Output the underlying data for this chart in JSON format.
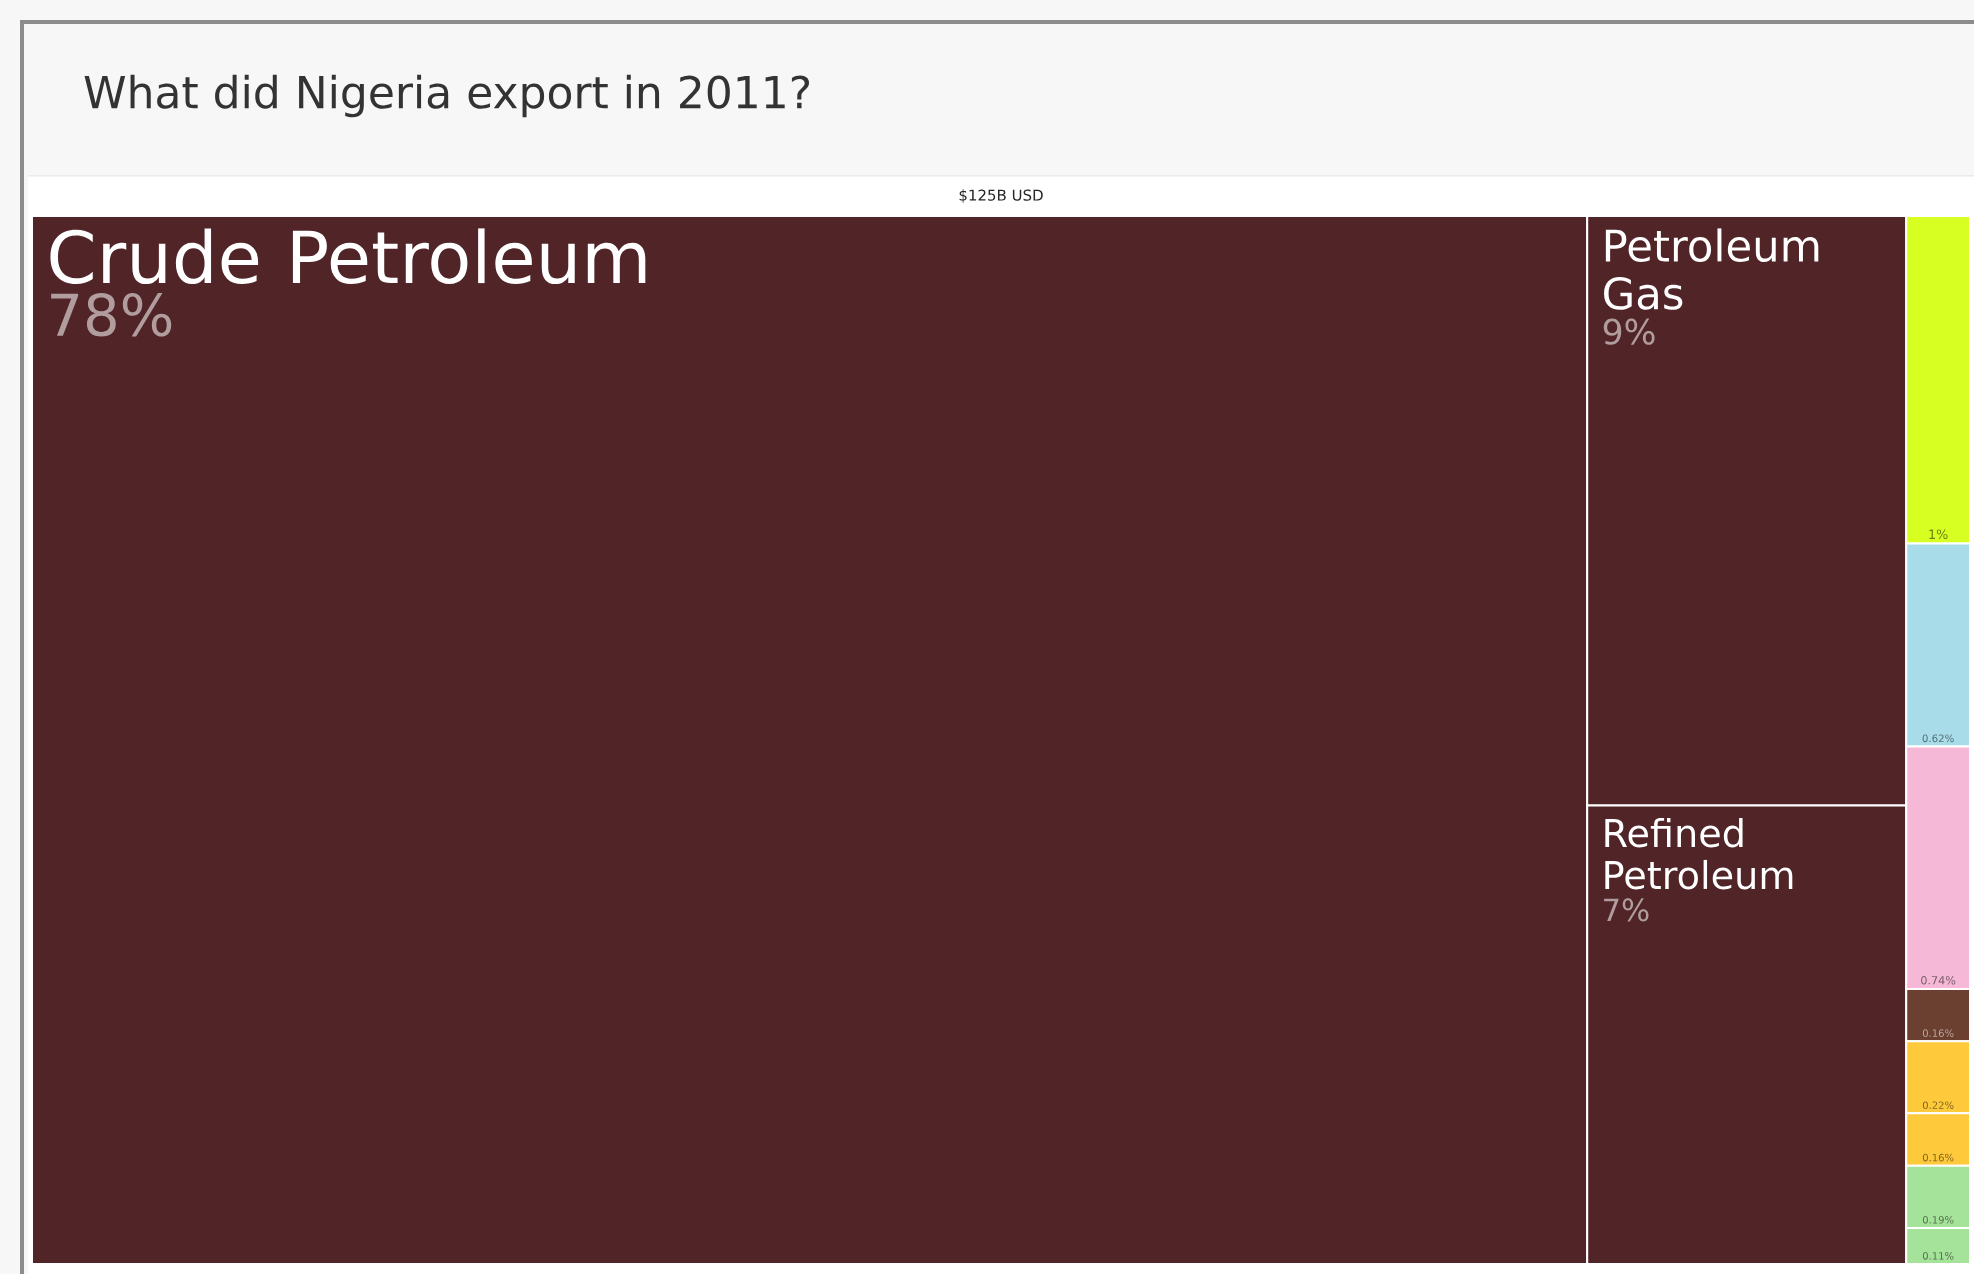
{
  "chart_data": {
    "type": "other",
    "title": "What did Nigeria export in 2011?",
    "subtitle": "$125B USD",
    "categories": [
      "Crude Petroleum",
      "Petroleum Gas",
      "Refined Petroleum",
      null,
      null,
      null,
      null,
      null,
      null,
      null,
      null
    ],
    "values": [
      78,
      9,
      7,
      1,
      0.62,
      0.74,
      0.16,
      0.22,
      0.16,
      0.19,
      0.11
    ],
    "value_labels": [
      "78%",
      "9%",
      "7%",
      "1%",
      "0.62%",
      "0.74%",
      "0.16%",
      "0.22%",
      "0.16%",
      "0.19%",
      "0.11%"
    ],
    "colors": [
      "#512528",
      "#512528",
      "#512528",
      "#d7ff22",
      "#a8dce8",
      "#f5b8d6",
      "#6b4030",
      "#ffc93c",
      "#ffc93c",
      "#a6e39a",
      "#a6e39a"
    ]
  }
}
